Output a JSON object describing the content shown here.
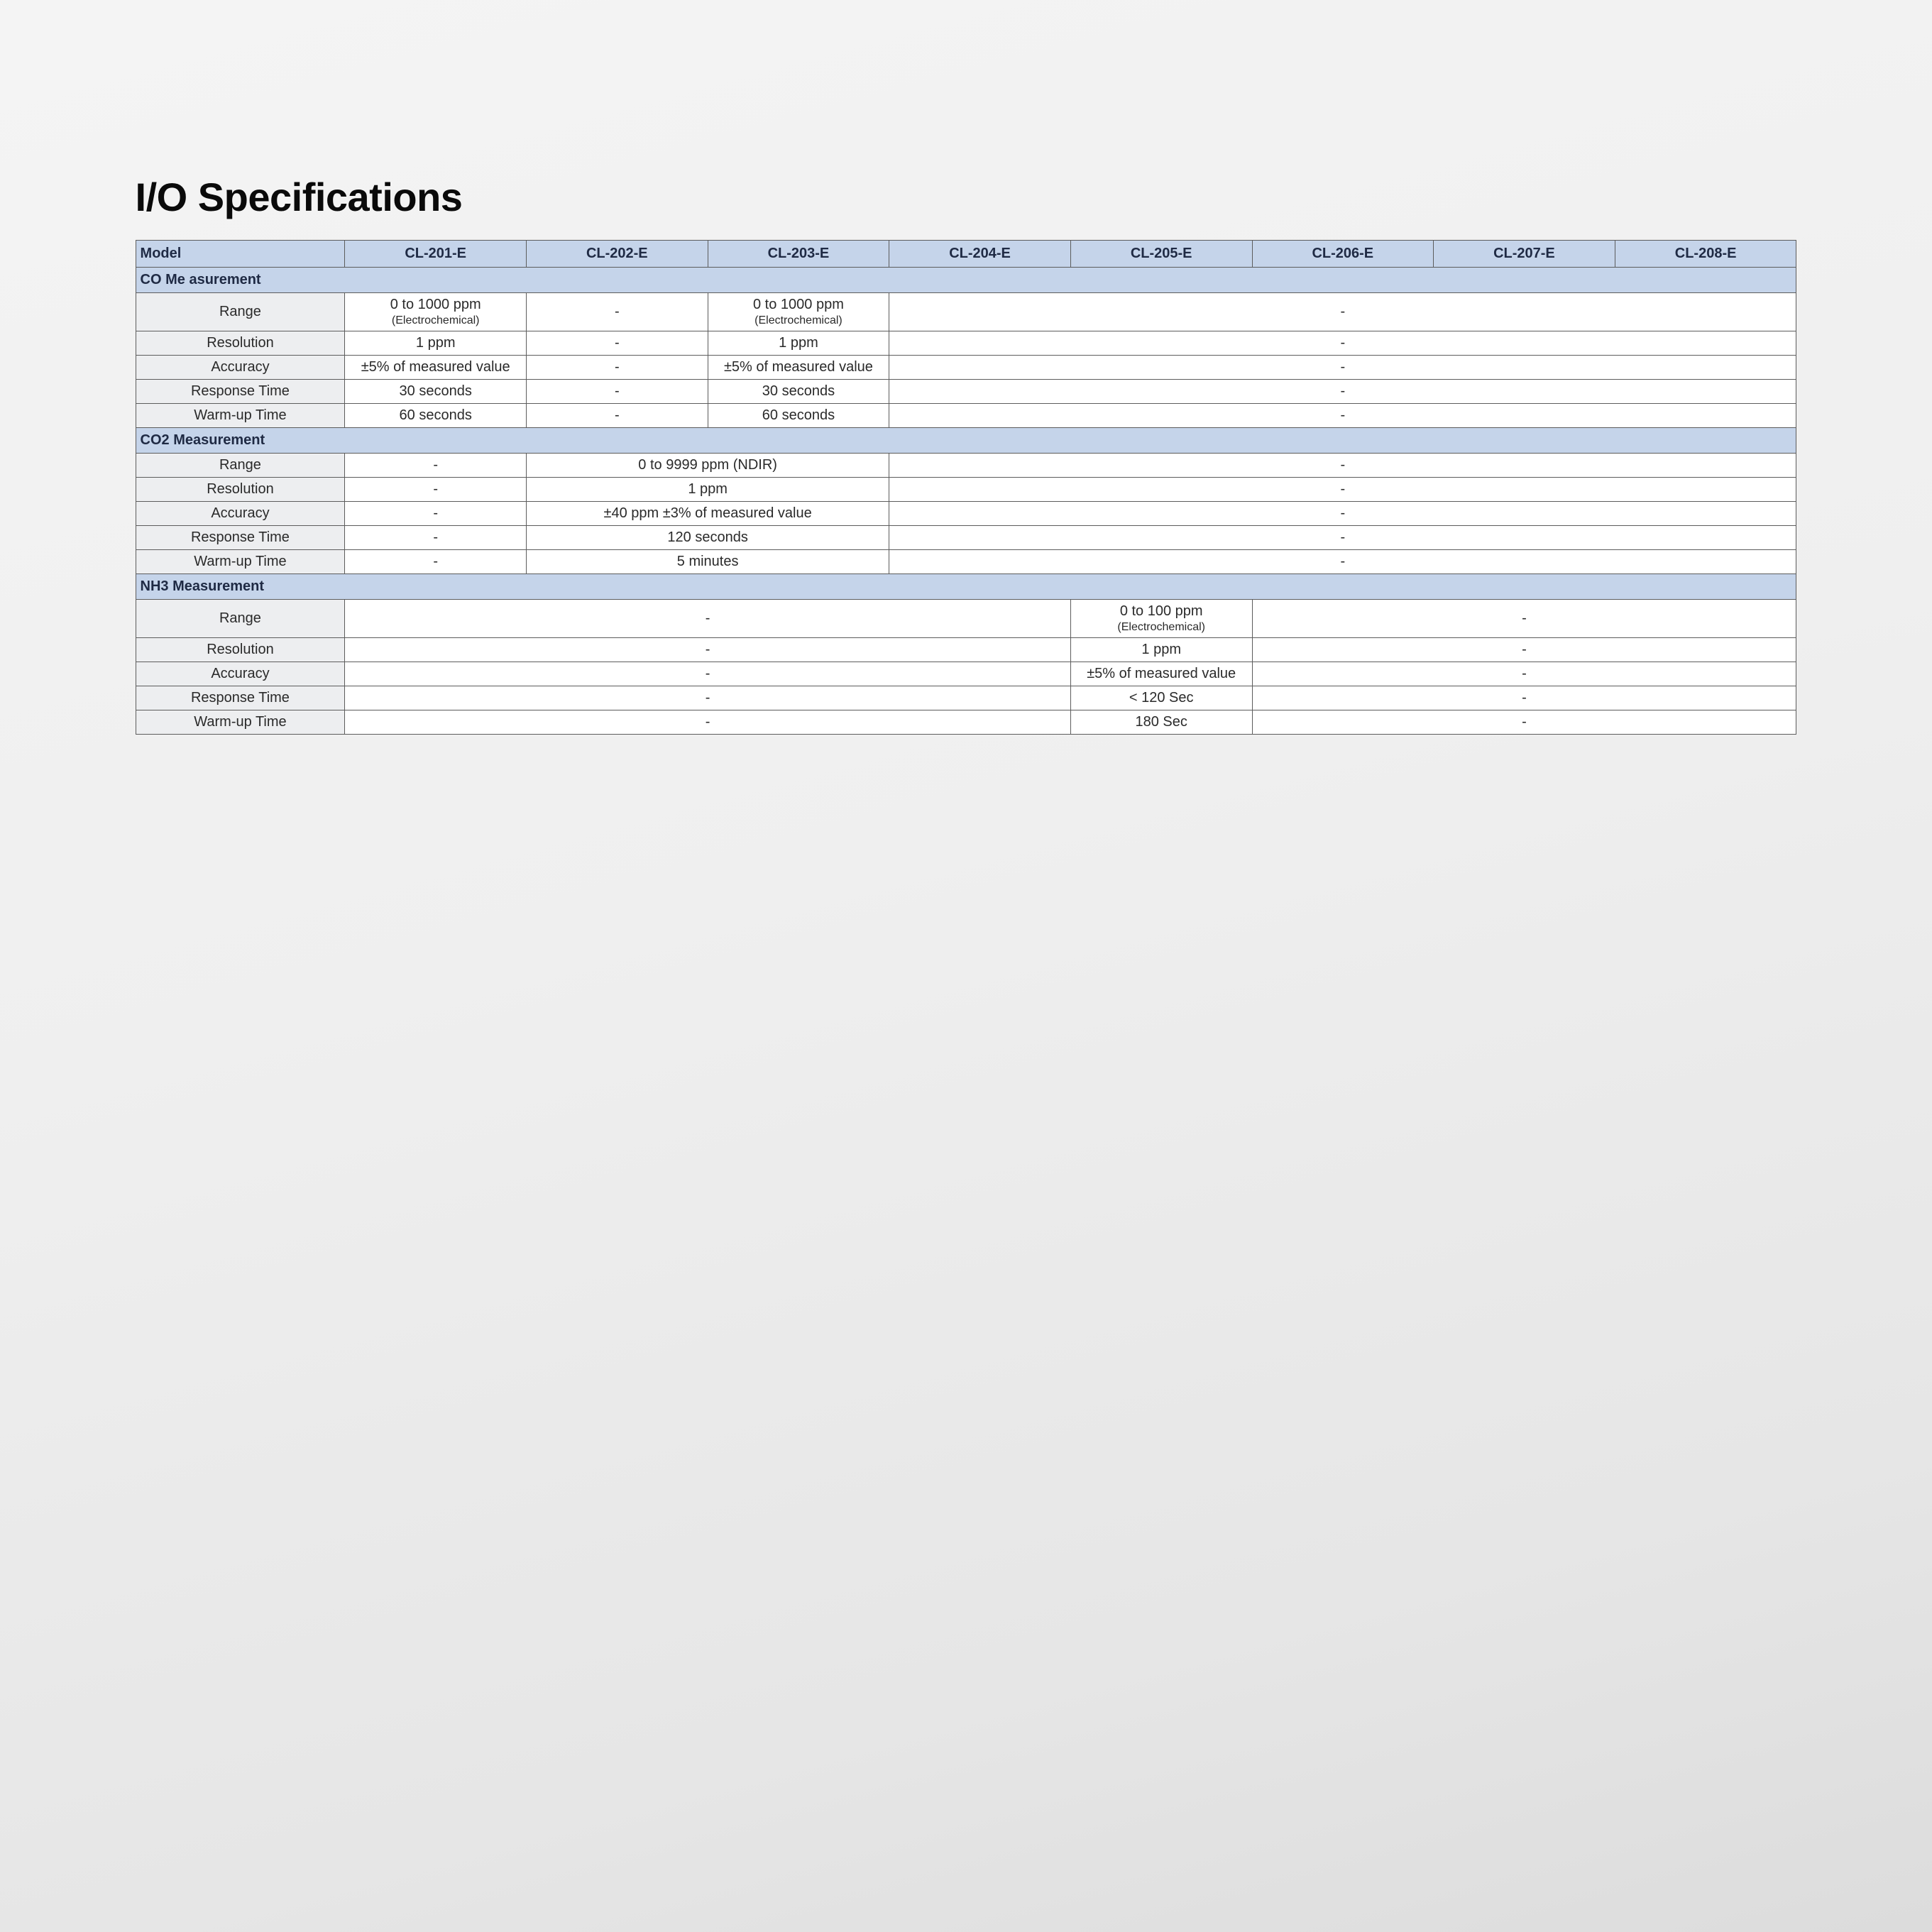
{
  "title": "I/O Specifications",
  "colors": {
    "page_bg_top": "#f4f4f4",
    "page_bg_bottom": "#dcdcdc",
    "title_color": "#0a0a0a",
    "border": "#5c5c5c",
    "section_bg": "#c5d4ea",
    "row_label_bg": "#edeef0",
    "cell_bg": "#ffffff",
    "text": "#2a2a2a",
    "header_text": "#1f2a44"
  },
  "typography": {
    "title_fontsize": 56,
    "title_weight": 800,
    "table_fontsize": 20,
    "subnote_fontsize": 16
  },
  "table": {
    "model_label": "Model",
    "models": [
      "CL-201-E",
      "CL-202-E",
      "CL-203-E",
      "CL-204-E",
      "CL-205-E",
      "CL-206-E",
      "CL-207-E",
      "CL-208-E"
    ],
    "sections": [
      {
        "title": "CO Me asurement",
        "rows": [
          {
            "label": "Range",
            "cells": [
              {
                "text": "0 to 1000 ppm",
                "sub": "(Electrochemical)",
                "span": 1
              },
              {
                "text": "-",
                "span": 1
              },
              {
                "text": "0 to 1000 ppm",
                "sub": "(Electrochemical)",
                "span": 1
              },
              {
                "text": "-",
                "span": 5
              }
            ]
          },
          {
            "label": "Resolution",
            "cells": [
              {
                "text": "1 ppm",
                "span": 1
              },
              {
                "text": "-",
                "span": 1
              },
              {
                "text": "1 ppm",
                "span": 1
              },
              {
                "text": "-",
                "span": 5
              }
            ]
          },
          {
            "label": "Accuracy",
            "cells": [
              {
                "text": "±5% of measured value",
                "span": 1
              },
              {
                "text": "-",
                "span": 1
              },
              {
                "text": "±5% of measured value",
                "span": 1
              },
              {
                "text": "-",
                "span": 5
              }
            ]
          },
          {
            "label": "Response Time",
            "cells": [
              {
                "text": "30 seconds",
                "span": 1
              },
              {
                "text": "-",
                "span": 1
              },
              {
                "text": "30 seconds",
                "span": 1
              },
              {
                "text": "-",
                "span": 5
              }
            ]
          },
          {
            "label": "Warm-up Time",
            "cells": [
              {
                "text": "60 seconds",
                "span": 1
              },
              {
                "text": "-",
                "span": 1
              },
              {
                "text": "60 seconds",
                "span": 1
              },
              {
                "text": "-",
                "span": 5
              }
            ]
          }
        ]
      },
      {
        "title": "CO2 Measurement",
        "rows": [
          {
            "label": "Range",
            "cells": [
              {
                "text": "-",
                "span": 1
              },
              {
                "text": "0 to 9999 ppm (NDIR)",
                "span": 2
              },
              {
                "text": "-",
                "span": 5
              }
            ]
          },
          {
            "label": "Resolution",
            "cells": [
              {
                "text": "-",
                "span": 1
              },
              {
                "text": "1 ppm",
                "span": 2
              },
              {
                "text": "-",
                "span": 5
              }
            ]
          },
          {
            "label": "Accuracy",
            "cells": [
              {
                "text": "-",
                "span": 1
              },
              {
                "text": "±40 ppm ±3% of measured value",
                "span": 2
              },
              {
                "text": "-",
                "span": 5
              }
            ]
          },
          {
            "label": "Response Time",
            "cells": [
              {
                "text": "-",
                "span": 1
              },
              {
                "text": "120 seconds",
                "span": 2
              },
              {
                "text": "-",
                "span": 5
              }
            ]
          },
          {
            "label": "Warm-up Time",
            "cells": [
              {
                "text": "-",
                "span": 1
              },
              {
                "text": "5 minutes",
                "span": 2
              },
              {
                "text": "-",
                "span": 5
              }
            ]
          }
        ]
      },
      {
        "title": "NH3 Measurement",
        "rows": [
          {
            "label": "Range",
            "cells": [
              {
                "text": "-",
                "span": 4
              },
              {
                "text": "0 to 100 ppm",
                "sub": "(Electrochemical)",
                "span": 1
              },
              {
                "text": "-",
                "span": 3
              }
            ]
          },
          {
            "label": "Resolution",
            "cells": [
              {
                "text": "-",
                "span": 4
              },
              {
                "text": "1 ppm",
                "span": 1
              },
              {
                "text": "-",
                "span": 3
              }
            ]
          },
          {
            "label": "Accuracy",
            "cells": [
              {
                "text": "-",
                "span": 4
              },
              {
                "text": "±5% of measured value",
                "span": 1
              },
              {
                "text": "-",
                "span": 3
              }
            ]
          },
          {
            "label": "Response Time",
            "cells": [
              {
                "text": "-",
                "span": 4
              },
              {
                "text": "< 120 Sec",
                "span": 1
              },
              {
                "text": "-",
                "span": 3
              }
            ]
          },
          {
            "label": "Warm-up Time",
            "cells": [
              {
                "text": "-",
                "span": 4
              },
              {
                "text": "180 Sec",
                "span": 1
              },
              {
                "text": "-",
                "span": 3
              }
            ]
          }
        ]
      }
    ]
  }
}
